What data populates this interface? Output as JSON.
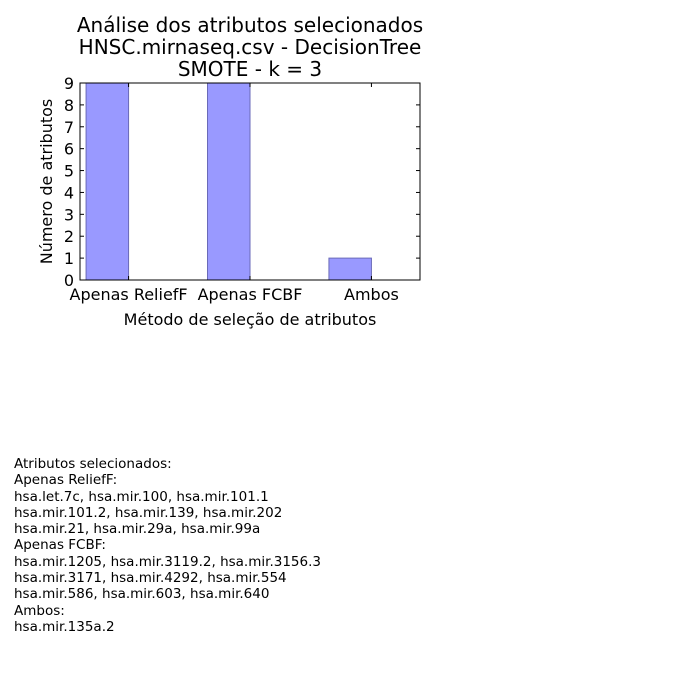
{
  "chart_data": {
    "type": "bar",
    "title": [
      "Análise dos atributos selecionados",
      "HNSC.mirnaseq.csv - DecisionTree",
      "SMOTE - k = 3"
    ],
    "categories": [
      "Apenas ReliefF",
      "Apenas FCBF",
      "Ambos"
    ],
    "values": [
      9,
      9,
      1
    ],
    "xlabel": "Método de seleção de atributos",
    "ylabel": "Número de atributos",
    "ylim": [
      0,
      9
    ],
    "yticks": [
      0,
      1,
      2,
      3,
      4,
      5,
      6,
      7,
      8,
      9
    ],
    "grid": false,
    "legend": "none",
    "bar_color": "#9999ff",
    "bar_edge_color": "#6a6ab8"
  },
  "notes": {
    "lines": [
      "Atributos selecionados:",
      "Apenas ReliefF:",
      "hsa.let.7c, hsa.mir.100, hsa.mir.101.1",
      "hsa.mir.101.2, hsa.mir.139, hsa.mir.202",
      "hsa.mir.21, hsa.mir.29a, hsa.mir.99a",
      "Apenas FCBF:",
      "hsa.mir.1205, hsa.mir.3119.2, hsa.mir.3156.3",
      "hsa.mir.3171, hsa.mir.4292, hsa.mir.554",
      "hsa.mir.586, hsa.mir.603, hsa.mir.640",
      "Ambos:",
      "hsa.mir.135a.2"
    ]
  }
}
